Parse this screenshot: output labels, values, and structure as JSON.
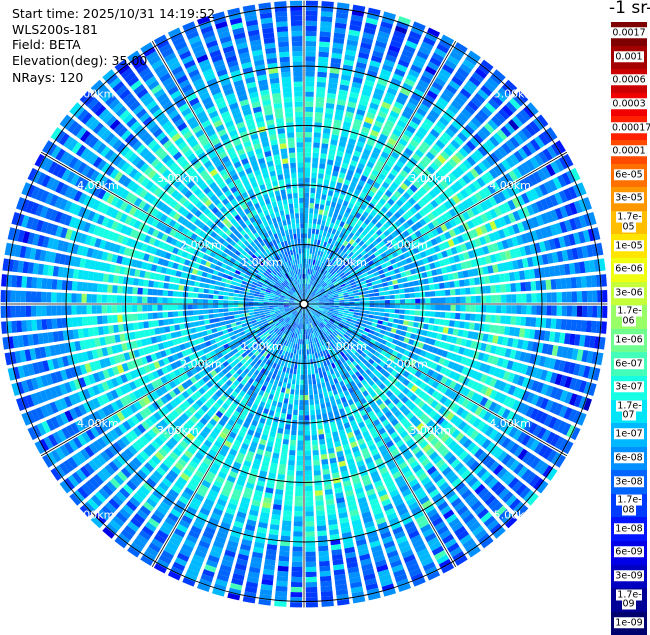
{
  "header": {
    "start_time": "Start time: 2025/10/31 14:19:52",
    "instrument": "WLS200s-181",
    "field": "Field: BETA",
    "elevation": "Elevation(deg): 35.00",
    "nrays": "NRays: 120"
  },
  "colorbar": {
    "title": "-1 sr-",
    "labels": [
      "0.0017",
      "0.001",
      "0.0006",
      "0.0003",
      "0.00017",
      "0.0001",
      "6e-05",
      "3e-05",
      "1.7e-05",
      "1e-05",
      "6e-06",
      "3e-06",
      "1.7e-06",
      "1e-06",
      "6e-07",
      "3e-07",
      "1.7e-07",
      "1e-07",
      "6e-08",
      "3e-08",
      "1.7e-08",
      "1e-08",
      "6e-09",
      "3e-09",
      "1.7e-09",
      "1e-09"
    ],
    "colors": [
      "#7f0000",
      "#a50000",
      "#cc0000",
      "#f00000",
      "#ff2000",
      "#ff4a00",
      "#ff7000",
      "#ff9800",
      "#ffbf00",
      "#ffe500",
      "#f0ff10",
      "#c4ff3a",
      "#98ff66",
      "#6eff90",
      "#44ffba",
      "#16ffe4",
      "#00e4f8",
      "#00b8ff",
      "#0090ff",
      "#0064ff",
      "#003cff",
      "#0014ff",
      "#0000e8",
      "#0000c0",
      "#000096",
      "#00006e"
    ]
  },
  "chart_data": {
    "type": "heatmap",
    "subtype": "polar PPI scan",
    "field": "BETA",
    "elevation_deg": 35.0,
    "n_rays": 120,
    "range_ring_labels_km": [
      "1.00km",
      "2.00km",
      "3.00km",
      "4.00km",
      "5.00km"
    ],
    "range_rings_km": [
      1,
      2,
      3,
      4,
      5
    ],
    "max_range_km": 5.1,
    "label_angles_deg": [
      45,
      60,
      135,
      120,
      225,
      240,
      315,
      300
    ],
    "spoke_count": 12,
    "value_scale": "log",
    "value_range": [
      1e-09,
      0.0017
    ],
    "typical_value_by_range_km": [
      {
        "range": 0.5,
        "value": 6e-08
      },
      {
        "range": 1.5,
        "value": 1e-07
      },
      {
        "range": 2.5,
        "value": 1.7e-07
      },
      {
        "range": 3.3,
        "value": 3e-07
      },
      {
        "range": 4.2,
        "value": 6e-08
      },
      {
        "range": 5.0,
        "value": 3e-08
      }
    ]
  }
}
